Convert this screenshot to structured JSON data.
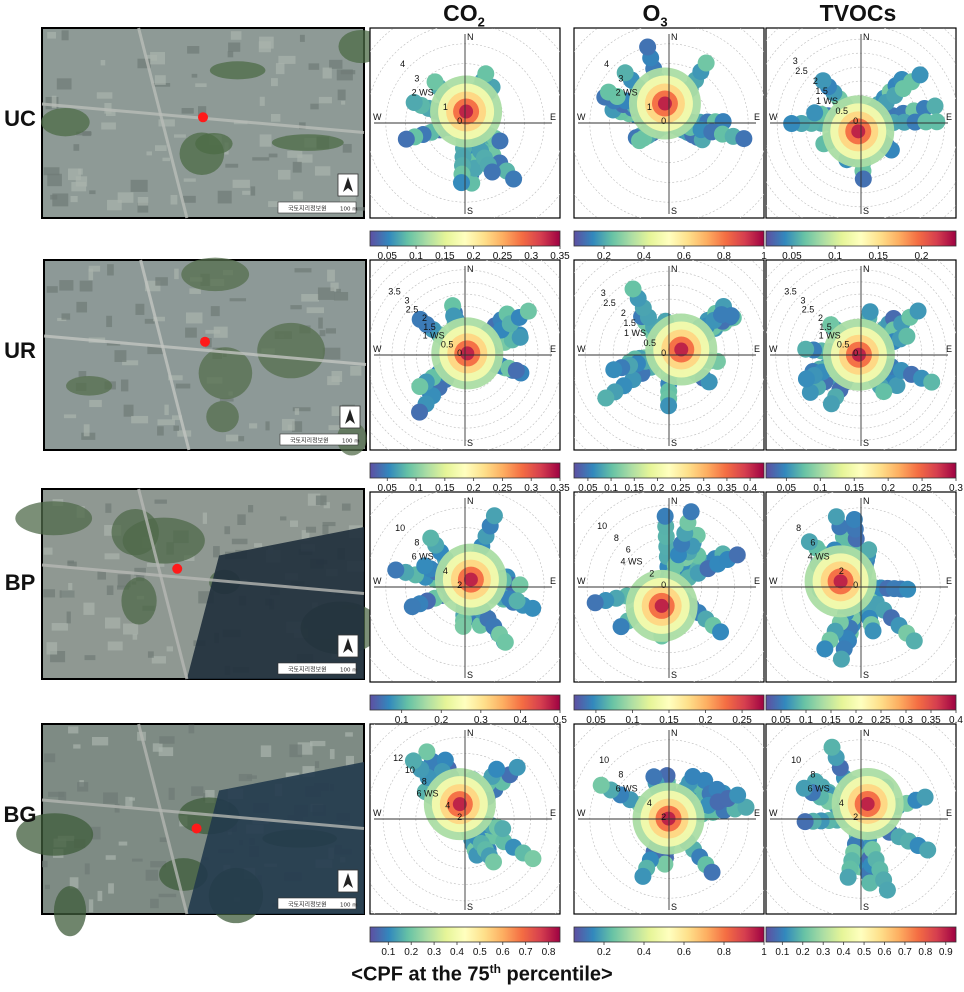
{
  "columns": [
    {
      "main": "CO",
      "sub": "2"
    },
    {
      "main": "O",
      "sub": "3"
    },
    {
      "main": "TVOCs",
      "sub": ""
    }
  ],
  "caption": {
    "prefix": "<CPF at the 75",
    "sup": "th",
    "suffix": " percentile>"
  },
  "compass_labels": {
    "N": "N",
    "E": "E",
    "S": "S",
    "W": "W"
  },
  "ws_label": "WS",
  "map_credit": "국토지리정보원",
  "map_scale": "100 m",
  "colormap": [
    "#5e4fa2",
    "#3288bd",
    "#66c2a5",
    "#abdda4",
    "#e6f598",
    "#ffffbf",
    "#fee08b",
    "#fdae61",
    "#f46d43",
    "#d53e4f",
    "#9e0142"
  ],
  "sites": [
    {
      "name": "UC",
      "map_colors": {
        "bg": "#8e9a96",
        "veg": "#4c6b45",
        "road": "#b9bdb8",
        "water": "#2f4a5e"
      },
      "panels": [
        {
          "pollutant": "CO2",
          "rings": [
            "4",
            "3",
            "2",
            "1",
            "0"
          ],
          "ticks": [
            "0.05",
            "0.1",
            "0.15",
            "0.2",
            "0.25",
            "0.3",
            "0.35"
          ],
          "range": [
            0.02,
            0.35
          ]
        },
        {
          "pollutant": "O3",
          "rings": [
            "4",
            "3",
            "2",
            "1",
            "0"
          ],
          "ticks": [
            "0.2",
            "0.4",
            "0.6",
            "0.8",
            "1"
          ],
          "range": [
            0.05,
            1.0
          ]
        },
        {
          "pollutant": "TVOCs",
          "rings": [
            "3",
            "2.5",
            "2",
            "1.5",
            "1",
            "0.5",
            "0"
          ],
          "ticks": [
            "0.05",
            "0.1",
            "0.15",
            "0.2"
          ],
          "range": [
            0.02,
            0.24
          ]
        }
      ]
    },
    {
      "name": "UR",
      "map_colors": {
        "bg": "#8d9997",
        "veg": "#556f4e",
        "road": "#c2c5c1",
        "water": "#3a5566"
      },
      "panels": [
        {
          "pollutant": "CO2",
          "rings": [
            "3.5",
            "3",
            "2.5",
            "2",
            "1.5",
            "1",
            "0.5",
            "0"
          ],
          "ticks": [
            "0.05",
            "0.1",
            "0.15",
            "0.2",
            "0.25",
            "0.3",
            "0.35"
          ],
          "range": [
            0.02,
            0.35
          ]
        },
        {
          "pollutant": "O3",
          "rings": [
            "3",
            "2.5",
            "2",
            "1.5",
            "1",
            "0.5",
            "0"
          ],
          "ticks": [
            "0.05",
            "0.1",
            "0.15",
            "0.2",
            "0.25",
            "0.3",
            "0.35",
            "0.4"
          ],
          "range": [
            0.02,
            0.43
          ]
        },
        {
          "pollutant": "TVOCs",
          "rings": [
            "3.5",
            "3",
            "2.5",
            "2",
            "1.5",
            "1",
            "0.5",
            "0"
          ],
          "ticks": [
            "0.05",
            "0.1",
            "0.15",
            "0.2",
            "0.25",
            "0.3"
          ],
          "range": [
            0.02,
            0.3
          ]
        }
      ]
    },
    {
      "name": "BP",
      "map_colors": {
        "bg": "#8f9892",
        "veg": "#4f6a49",
        "road": "#b6b8b4",
        "water": "#1f2f3c"
      },
      "panels": [
        {
          "pollutant": "CO2",
          "rings": [
            "10",
            "8",
            "6",
            "4",
            "2"
          ],
          "ticks": [
            "0.1",
            "0.2",
            "0.3",
            "0.4",
            "0.5"
          ],
          "range": [
            0.02,
            0.5
          ]
        },
        {
          "pollutant": "O3",
          "rings": [
            "10",
            "8",
            "6",
            "4",
            "2",
            "0"
          ],
          "ticks": [
            "0.05",
            "0.1",
            "0.15",
            "0.2",
            "0.25"
          ],
          "range": [
            0.02,
            0.28
          ]
        },
        {
          "pollutant": "TVOCs",
          "rings": [
            "8",
            "6",
            "4",
            "2",
            "0"
          ],
          "ticks": [
            "0.05",
            "0.1",
            "0.15",
            "0.2",
            "0.25",
            "0.3",
            "0.35",
            "0.4"
          ],
          "range": [
            0.02,
            0.4
          ]
        }
      ]
    },
    {
      "name": "BG",
      "map_colors": {
        "bg": "#7e8b84",
        "veg": "#3f5c3b",
        "road": "#b3b6b1",
        "water": "#223a4d"
      },
      "panels": [
        {
          "pollutant": "CO2",
          "rings": [
            "12",
            "10",
            "8",
            "6",
            "4",
            "2"
          ],
          "ticks": [
            "0.1",
            "0.2",
            "0.3",
            "0.4",
            "0.5",
            "0.6",
            "0.7",
            "0.8"
          ],
          "range": [
            0.02,
            0.85
          ]
        },
        {
          "pollutant": "O3",
          "rings": [
            "10",
            "8",
            "6",
            "4",
            "2"
          ],
          "ticks": [
            "0.2",
            "0.4",
            "0.6",
            "0.8",
            "1"
          ],
          "range": [
            0.05,
            1.0
          ]
        },
        {
          "pollutant": "TVOCs",
          "rings": [
            "10",
            "8",
            "6",
            "4",
            "2"
          ],
          "ticks": [
            "0.1",
            "0.2",
            "0.3",
            "0.4",
            "0.5",
            "0.6",
            "0.7",
            "0.8",
            "0.9"
          ],
          "range": [
            0.02,
            0.95
          ]
        }
      ]
    }
  ]
}
